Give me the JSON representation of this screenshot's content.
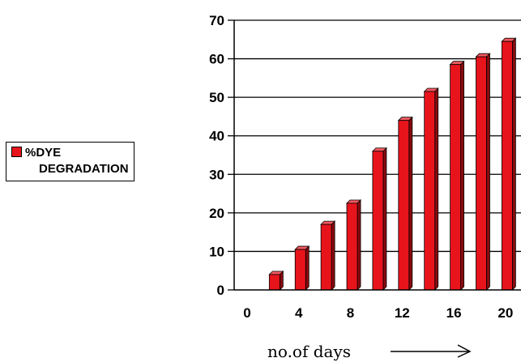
{
  "chart_data": {
    "type": "bar",
    "title": "",
    "xlabel": "no.of days",
    "ylabel": "",
    "ylim": [
      0,
      70
    ],
    "yticks": [
      0,
      10,
      20,
      30,
      40,
      50,
      60,
      70
    ],
    "xticks": [
      0,
      4,
      8,
      12,
      16,
      20
    ],
    "grid": true,
    "legend_position": "left",
    "series": [
      {
        "name": "%DYE DEGRADATION",
        "color": "#e8141c",
        "x": [
          2,
          4,
          6,
          8,
          10,
          12,
          14,
          16,
          18,
          20
        ],
        "values": [
          4,
          10.5,
          17,
          22.5,
          36,
          44,
          51.5,
          58.5,
          60.5,
          64.5
        ]
      }
    ]
  },
  "legend": {
    "line1": "%DYE",
    "line2": "DEGRADATION"
  }
}
